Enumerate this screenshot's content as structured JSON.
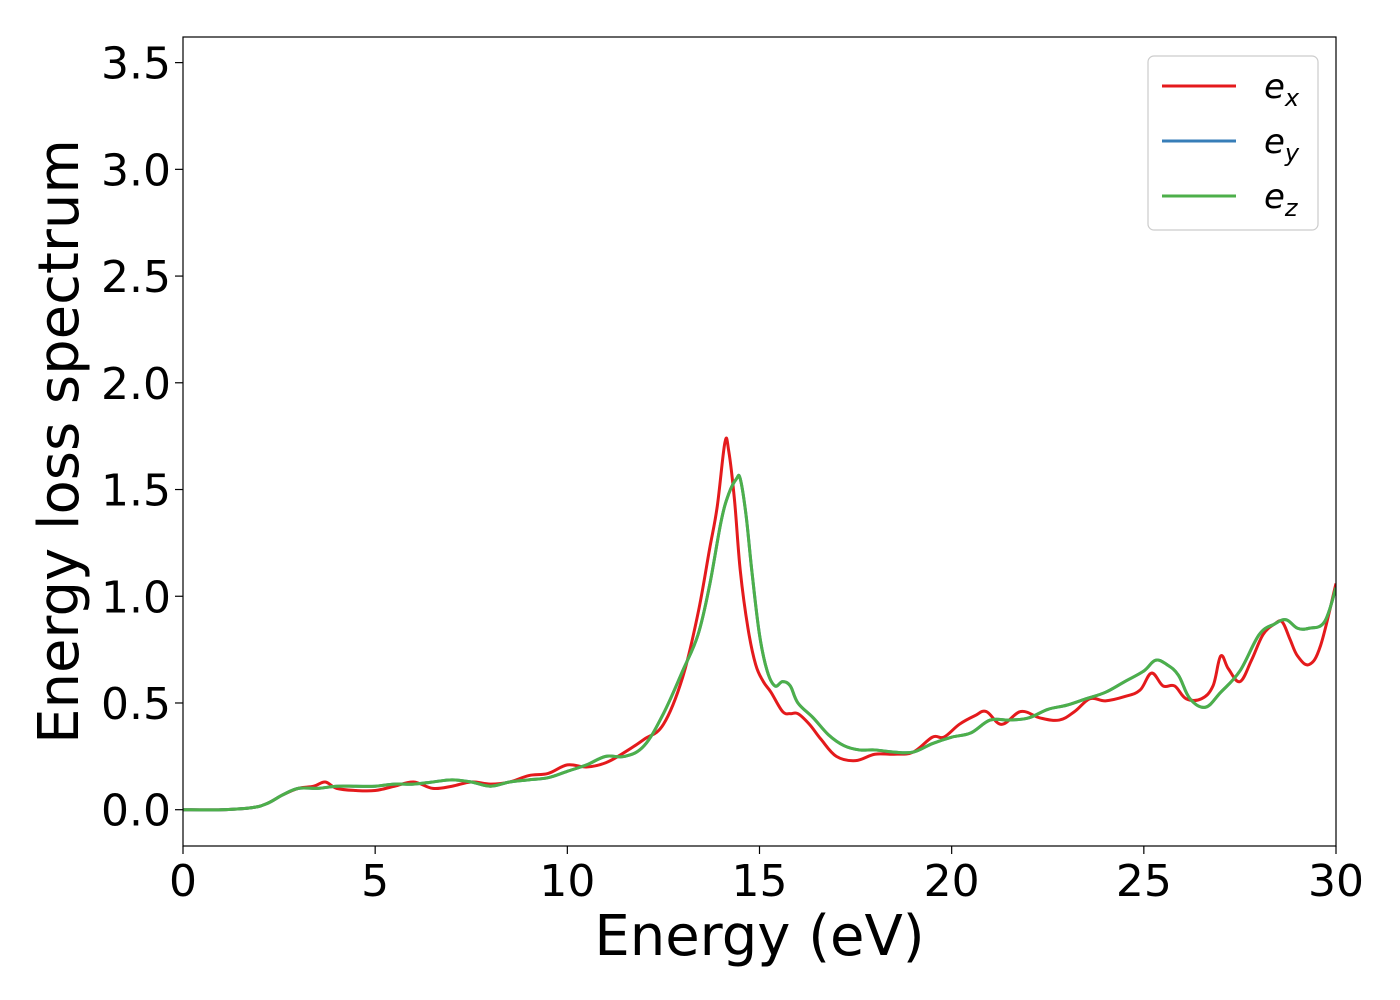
{
  "chart_data": {
    "type": "line",
    "title": "",
    "xlabel": "Energy (eV)",
    "ylabel": "Energy loss spectrum",
    "xlim": [
      0,
      30
    ],
    "ylim": [
      -0.17,
      3.62
    ],
    "xticks": [
      0,
      5,
      10,
      15,
      20,
      25,
      30
    ],
    "yticks": [
      0.0,
      0.5,
      1.0,
      1.5,
      2.0,
      2.5,
      3.0,
      3.5
    ],
    "xtick_labels": [
      "0",
      "5",
      "10",
      "15",
      "20",
      "25",
      "30"
    ],
    "ytick_labels": [
      "0.0",
      "0.5",
      "1.0",
      "1.5",
      "2.0",
      "2.5",
      "3.0",
      "3.5"
    ],
    "grid": false,
    "legend_position": "top-right",
    "series": [
      {
        "name": "e",
        "subscript": "x",
        "color": "#e41a1c",
        "x": [
          0,
          1,
          1.8,
          2.2,
          2.6,
          3.0,
          3.4,
          3.7,
          4.0,
          4.5,
          5.0,
          5.5,
          6.0,
          6.5,
          7.0,
          7.5,
          8.0,
          8.5,
          9.0,
          9.5,
          10.0,
          10.5,
          11.0,
          11.5,
          12.0,
          12.5,
          13.0,
          13.4,
          13.7,
          13.9,
          14.1,
          14.2,
          14.35,
          14.5,
          14.7,
          14.9,
          15.1,
          15.3,
          15.6,
          15.8,
          16.0,
          16.3,
          16.6,
          17.0,
          17.5,
          18.0,
          18.5,
          19.0,
          19.5,
          19.8,
          20.2,
          20.6,
          20.9,
          21.3,
          21.8,
          22.3,
          22.8,
          23.2,
          23.6,
          24.0,
          24.5,
          24.9,
          25.2,
          25.5,
          25.8,
          26.1,
          26.5,
          26.8,
          27.0,
          27.2,
          27.5,
          27.8,
          28.1,
          28.4,
          28.6,
          28.8,
          29.0,
          29.3,
          29.6,
          30.0
        ],
        "y": [
          0.0,
          0.0,
          0.01,
          0.03,
          0.07,
          0.1,
          0.11,
          0.13,
          0.1,
          0.09,
          0.09,
          0.11,
          0.13,
          0.1,
          0.11,
          0.13,
          0.12,
          0.13,
          0.16,
          0.17,
          0.21,
          0.2,
          0.22,
          0.27,
          0.33,
          0.4,
          0.62,
          0.92,
          1.22,
          1.42,
          1.72,
          1.68,
          1.45,
          1.12,
          0.85,
          0.68,
          0.6,
          0.55,
          0.46,
          0.45,
          0.45,
          0.4,
          0.33,
          0.25,
          0.23,
          0.26,
          0.26,
          0.27,
          0.34,
          0.34,
          0.4,
          0.44,
          0.46,
          0.4,
          0.46,
          0.43,
          0.42,
          0.46,
          0.52,
          0.51,
          0.53,
          0.56,
          0.64,
          0.58,
          0.58,
          0.52,
          0.52,
          0.58,
          0.72,
          0.66,
          0.6,
          0.7,
          0.82,
          0.87,
          0.88,
          0.8,
          0.72,
          0.68,
          0.77,
          1.06
        ]
      },
      {
        "name": "e",
        "subscript": "y",
        "color": "#377eb8",
        "x": [
          0,
          1,
          1.8,
          2.2,
          2.6,
          3.0,
          3.5,
          4.0,
          4.5,
          5.0,
          5.5,
          6.0,
          6.5,
          7.0,
          7.5,
          8.0,
          8.5,
          9.0,
          9.5,
          10.0,
          10.5,
          11.0,
          11.5,
          12.0,
          12.5,
          13.0,
          13.4,
          13.7,
          14.0,
          14.2,
          14.4,
          14.5,
          14.65,
          14.8,
          15.0,
          15.2,
          15.4,
          15.6,
          15.8,
          16.0,
          16.4,
          16.8,
          17.2,
          17.6,
          18.0,
          18.5,
          19.0,
          19.5,
          20.0,
          20.5,
          21.0,
          21.5,
          22.0,
          22.5,
          23.0,
          23.5,
          24.0,
          24.5,
          25.0,
          25.3,
          25.6,
          25.9,
          26.2,
          26.6,
          27.0,
          27.5,
          28.0,
          28.4,
          28.7,
          29.0,
          29.3,
          29.7,
          30.0
        ],
        "y": [
          0.0,
          0.0,
          0.01,
          0.03,
          0.07,
          0.1,
          0.1,
          0.11,
          0.11,
          0.11,
          0.12,
          0.12,
          0.13,
          0.14,
          0.13,
          0.11,
          0.13,
          0.14,
          0.15,
          0.18,
          0.21,
          0.25,
          0.25,
          0.3,
          0.45,
          0.65,
          0.82,
          1.05,
          1.35,
          1.48,
          1.55,
          1.55,
          1.38,
          1.12,
          0.82,
          0.65,
          0.58,
          0.6,
          0.58,
          0.5,
          0.43,
          0.35,
          0.3,
          0.28,
          0.28,
          0.27,
          0.27,
          0.31,
          0.34,
          0.36,
          0.42,
          0.42,
          0.43,
          0.47,
          0.49,
          0.52,
          0.55,
          0.6,
          0.65,
          0.7,
          0.68,
          0.63,
          0.52,
          0.48,
          0.55,
          0.65,
          0.82,
          0.87,
          0.89,
          0.85,
          0.85,
          0.88,
          1.04
        ]
      },
      {
        "name": "e",
        "subscript": "z",
        "color": "#4daf4a",
        "x": [
          0,
          1,
          1.8,
          2.2,
          2.6,
          3.0,
          3.5,
          4.0,
          4.5,
          5.0,
          5.5,
          6.0,
          6.5,
          7.0,
          7.5,
          8.0,
          8.5,
          9.0,
          9.5,
          10.0,
          10.5,
          11.0,
          11.5,
          12.0,
          12.5,
          13.0,
          13.4,
          13.7,
          14.0,
          14.2,
          14.4,
          14.5,
          14.65,
          14.8,
          15.0,
          15.2,
          15.4,
          15.6,
          15.8,
          16.0,
          16.4,
          16.8,
          17.2,
          17.6,
          18.0,
          18.5,
          19.0,
          19.5,
          20.0,
          20.5,
          21.0,
          21.5,
          22.0,
          22.5,
          23.0,
          23.5,
          24.0,
          24.5,
          25.0,
          25.3,
          25.6,
          25.9,
          26.2,
          26.6,
          27.0,
          27.5,
          28.0,
          28.4,
          28.7,
          29.0,
          29.3,
          29.7,
          30.0
        ],
        "y": [
          0.0,
          0.0,
          0.01,
          0.03,
          0.07,
          0.1,
          0.1,
          0.11,
          0.11,
          0.11,
          0.12,
          0.12,
          0.13,
          0.14,
          0.13,
          0.11,
          0.13,
          0.14,
          0.15,
          0.18,
          0.21,
          0.25,
          0.25,
          0.3,
          0.45,
          0.65,
          0.82,
          1.05,
          1.35,
          1.48,
          1.55,
          1.55,
          1.38,
          1.12,
          0.82,
          0.65,
          0.58,
          0.6,
          0.58,
          0.5,
          0.43,
          0.35,
          0.3,
          0.28,
          0.28,
          0.27,
          0.27,
          0.31,
          0.34,
          0.36,
          0.42,
          0.42,
          0.43,
          0.47,
          0.49,
          0.52,
          0.55,
          0.6,
          0.65,
          0.7,
          0.68,
          0.63,
          0.52,
          0.48,
          0.55,
          0.65,
          0.82,
          0.87,
          0.89,
          0.85,
          0.85,
          0.88,
          1.04
        ]
      }
    ]
  }
}
